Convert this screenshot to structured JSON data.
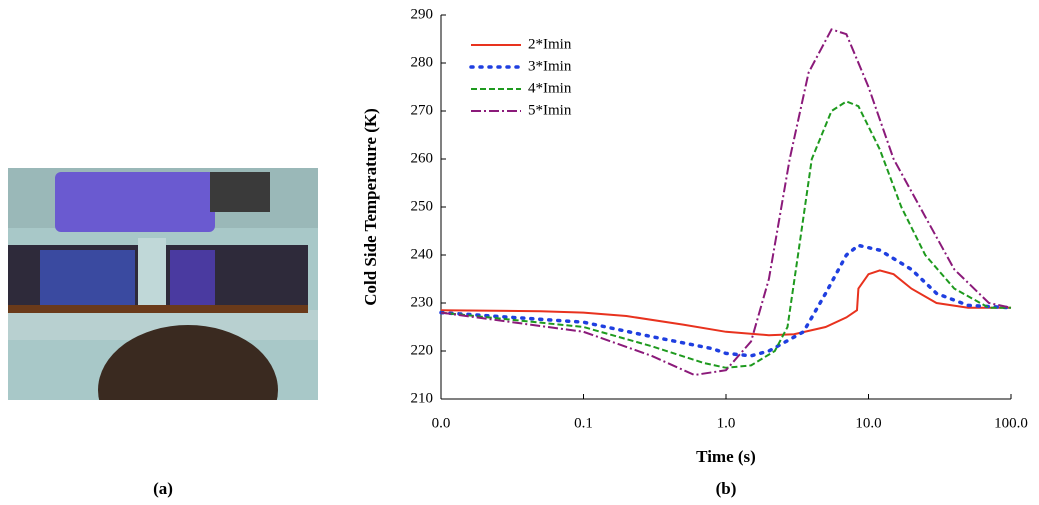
{
  "chart_data": {
    "type": "line",
    "x_label": "Time (s)",
    "y_label": "Cold Side Temperature (K)",
    "annotations": [
      "(a)",
      "(b)"
    ],
    "xscale": "log",
    "xlim": [
      0.01,
      100
    ],
    "xticks": [
      {
        "value": 0.01,
        "label": "0.0"
      },
      {
        "value": 0.1,
        "label": "0.1"
      },
      {
        "value": 1,
        "label": "1.0"
      },
      {
        "value": 10,
        "label": "10.0"
      },
      {
        "value": 100,
        "label": "100.0"
      }
    ],
    "ylim": [
      210,
      290
    ],
    "yticks": [
      210,
      220,
      230,
      240,
      250,
      260,
      270,
      280,
      290
    ],
    "legend": "upper left",
    "series": [
      {
        "name": "2*Imin",
        "color": "#e8321e",
        "linestyle": "solid",
        "x": [
          0.01,
          0.05,
          0.1,
          0.2,
          0.5,
          1,
          2,
          3,
          5,
          7,
          8.3,
          8.5,
          10,
          12,
          15,
          20,
          30,
          50,
          100
        ],
        "values": [
          228.5,
          228.3,
          228,
          227.3,
          225.5,
          224,
          223.3,
          223.5,
          225,
          227,
          228.5,
          233,
          236,
          236.8,
          236,
          233,
          230,
          229,
          229
        ]
      },
      {
        "name": "3*Imin",
        "color": "#1f3fe0",
        "linestyle": "dotted",
        "x": [
          0.01,
          0.1,
          0.3,
          0.8,
          1,
          1.5,
          2,
          3.5,
          5,
          7,
          8.5,
          12,
          20,
          30,
          50,
          100
        ],
        "values": [
          228,
          226,
          223,
          220.5,
          219.5,
          219,
          220,
          224,
          232,
          240,
          242,
          241,
          237,
          232,
          229.5,
          229
        ]
      },
      {
        "name": "4*Imin",
        "color": "#1e9a1e",
        "linestyle": "dashed",
        "x": [
          0.01,
          0.1,
          0.3,
          0.7,
          1,
          1.5,
          2.2,
          2.7,
          3.2,
          4,
          5.5,
          7,
          8.5,
          12,
          17,
          25,
          40,
          70,
          100
        ],
        "values": [
          228,
          225,
          221,
          217.5,
          216.5,
          217,
          220,
          225,
          240,
          260,
          270,
          272,
          271,
          262,
          250,
          240,
          233,
          229,
          229
        ]
      },
      {
        "name": "5*Imin",
        "color": "#8b1a7a",
        "linestyle": "dashdot",
        "x": [
          0.01,
          0.1,
          0.3,
          0.6,
          1,
          1.5,
          2,
          2.8,
          3.8,
          5.5,
          7,
          10,
          15,
          25,
          40,
          70,
          100
        ],
        "values": [
          228,
          224,
          219,
          215,
          216,
          222,
          235,
          260,
          278,
          287,
          286,
          275,
          260,
          248,
          237,
          230,
          229
        ]
      }
    ]
  }
}
